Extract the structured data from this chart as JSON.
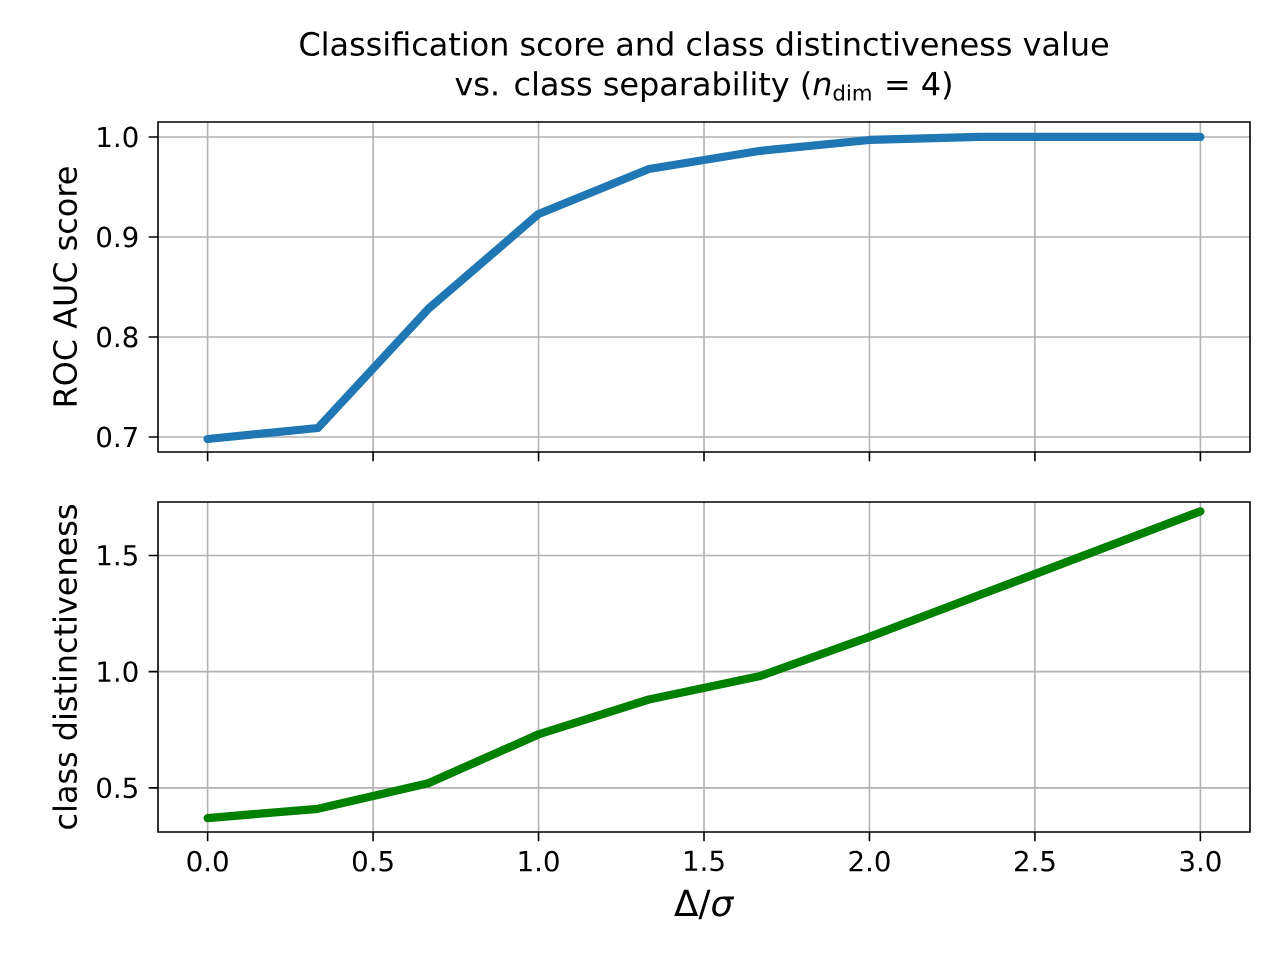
{
  "chart_data": [
    {
      "type": "line",
      "title": "Classification score and class distinctiveness value\nvs. class separability (*n*$_{dim}$ = 4)",
      "ylabel": "ROC AUC score",
      "x": [
        0,
        0.3333,
        0.6667,
        1,
        1.3333,
        1.6667,
        2,
        2.3333,
        2.6667,
        3
      ],
      "series": [
        {
          "color": "#1f77b4",
          "values": [
            0.698,
            0.709,
            0.828,
            0.923,
            0.968,
            0.986,
            0.997,
            1.0,
            1.0,
            1.0
          ]
        }
      ],
      "xlim": [
        -0.15,
        3.15
      ],
      "ylim": [
        0.685,
        1.015
      ],
      "xticks": [
        {
          "value": 0,
          "label": null
        },
        {
          "value": 0.5,
          "label": null
        },
        {
          "value": 1,
          "label": null
        },
        {
          "value": 1.5,
          "label": null
        },
        {
          "value": 2,
          "label": null
        },
        {
          "value": 2.5,
          "label": null
        },
        {
          "value": 3,
          "label": null
        }
      ],
      "yticks": [
        0.7,
        0.8,
        0.9,
        {
          "value": 1,
          "label": "1.0"
        }
      ],
      "grid": true,
      "tick_labels": "y",
      "line_style": "solid"
    },
    {
      "type": "line",
      "xlabel": "Δ/*σ*",
      "ylabel": "class distinctiveness",
      "x": [
        0,
        0.3333,
        0.6667,
        1,
        1.3333,
        1.6667,
        2,
        2.3333,
        2.6667,
        3
      ],
      "series": [
        {
          "color": "#008000",
          "values": [
            0.37,
            0.41,
            0.52,
            0.73,
            0.88,
            0.98,
            1.15,
            1.33,
            1.51,
            1.69
          ]
        }
      ],
      "xlim": [
        -0.15,
        3.15
      ],
      "ylim": [
        0.31,
        1.73
      ],
      "xticks": [
        {
          "value": 0,
          "label": "0.0"
        },
        0.5,
        {
          "value": 1,
          "label": "1.0"
        },
        1.5,
        {
          "value": 2,
          "label": "2.0"
        },
        2.5,
        {
          "value": 3,
          "label": "3.0"
        }
      ],
      "yticks": [
        0.5,
        {
          "value": 1,
          "label": "1.0"
        },
        1.5
      ],
      "grid": true,
      "line_style": "solid"
    }
  ]
}
